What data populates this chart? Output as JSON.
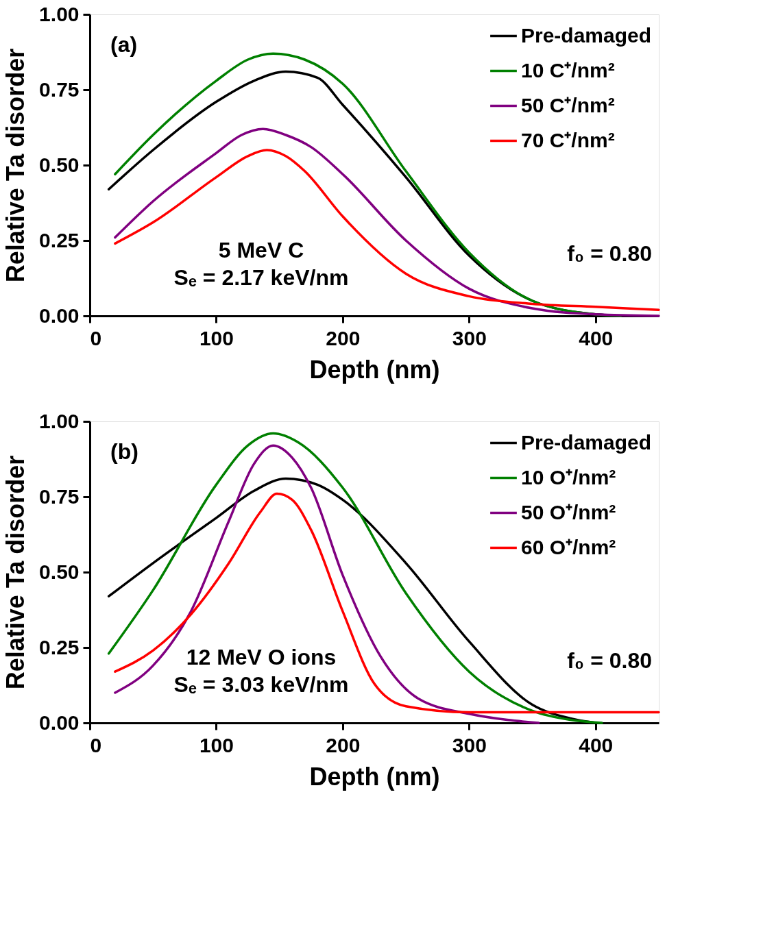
{
  "chart_data": [
    {
      "type": "line",
      "xlabel": "Depth (nm)",
      "ylabel": "Relative Ta disorder",
      "xlim": [
        0,
        450
      ],
      "xticks": [
        0,
        100,
        200,
        300,
        400
      ],
      "ylim": [
        0,
        1
      ],
      "yticks": [
        {
          "value": 0,
          "label": "0.00"
        },
        {
          "value": 0.25,
          "label": "0.25"
        },
        {
          "value": 0.5,
          "label": "0.50"
        },
        {
          "value": 0.75,
          "label": "0.75"
        },
        {
          "value": 1,
          "label": "1.00"
        }
      ],
      "grid": false,
      "legend": "top right",
      "line_style": "solid",
      "marker": "none",
      "annotations": [
        "(a)",
        "5 MeV C",
        "Sₑ = 2.17 keV/nm",
        "f₀ = 0.80"
      ],
      "series": [
        {
          "name": "Pre-damaged",
          "color": "#000000",
          "x": [
            15,
            50,
            100,
            130,
            155,
            180,
            200,
            250,
            300,
            350,
            400,
            420
          ],
          "values": [
            0.42,
            0.55,
            0.71,
            0.78,
            0.81,
            0.79,
            0.7,
            0.46,
            0.2,
            0.05,
            0.005,
            0.0
          ]
        },
        {
          "name": "10 C⁺/nm²",
          "color": "#008000",
          "x": [
            20,
            50,
            100,
            125,
            145,
            170,
            200,
            250,
            300,
            350,
            400,
            420
          ],
          "values": [
            0.47,
            0.6,
            0.78,
            0.85,
            0.87,
            0.85,
            0.77,
            0.48,
            0.21,
            0.05,
            0.005,
            0.0
          ]
        },
        {
          "name": "50 C⁺/nm²",
          "color": "#800080",
          "x": [
            20,
            50,
            100,
            120,
            137,
            155,
            175,
            200,
            250,
            300,
            350,
            400,
            450
          ],
          "values": [
            0.26,
            0.38,
            0.54,
            0.6,
            0.62,
            0.6,
            0.56,
            0.47,
            0.25,
            0.09,
            0.025,
            0.005,
            0.0
          ]
        },
        {
          "name": "70 C⁺/nm²",
          "color": "#ff0000",
          "x": [
            20,
            50,
            100,
            125,
            140,
            155,
            170,
            200,
            250,
            300,
            350,
            400,
            450
          ],
          "values": [
            0.24,
            0.31,
            0.46,
            0.53,
            0.55,
            0.53,
            0.48,
            0.33,
            0.14,
            0.065,
            0.04,
            0.03,
            0.02
          ]
        }
      ]
    },
    {
      "type": "line",
      "xlabel": "Depth (nm)",
      "ylabel": "Relative Ta disorder",
      "xlim": [
        0,
        450
      ],
      "xticks": [
        0,
        100,
        200,
        300,
        400
      ],
      "ylim": [
        0,
        1
      ],
      "yticks": [
        {
          "value": 0,
          "label": "0.00"
        },
        {
          "value": 0.25,
          "label": "0.25"
        },
        {
          "value": 0.5,
          "label": "0.50"
        },
        {
          "value": 0.75,
          "label": "0.75"
        },
        {
          "value": 1,
          "label": "1.00"
        }
      ],
      "grid": false,
      "legend": "top right",
      "line_style": "solid",
      "marker": "none",
      "annotations": [
        "(b)",
        "12 MeV O ions",
        "Sₑ = 3.03 keV/nm",
        "f₀ = 0.80"
      ],
      "series": [
        {
          "name": "Pre-damaged",
          "color": "#000000",
          "x": [
            15,
            50,
            100,
            130,
            155,
            180,
            200,
            250,
            300,
            350,
            380,
            400
          ],
          "values": [
            0.42,
            0.53,
            0.68,
            0.77,
            0.81,
            0.79,
            0.74,
            0.53,
            0.27,
            0.06,
            0.015,
            0.0
          ]
        },
        {
          "name": "10 O⁺/nm²",
          "color": "#008000",
          "x": [
            15,
            50,
            100,
            125,
            145,
            165,
            200,
            250,
            300,
            350,
            380,
            405
          ],
          "values": [
            0.23,
            0.44,
            0.79,
            0.92,
            0.96,
            0.93,
            0.78,
            0.43,
            0.17,
            0.04,
            0.01,
            0.0
          ]
        },
        {
          "name": "50 O⁺/nm²",
          "color": "#800080",
          "x": [
            20,
            50,
            80,
            110,
            130,
            145,
            160,
            175,
            200,
            230,
            260,
            300,
            330,
            355
          ],
          "values": [
            0.1,
            0.19,
            0.37,
            0.67,
            0.86,
            0.92,
            0.88,
            0.78,
            0.49,
            0.22,
            0.08,
            0.03,
            0.01,
            0.0
          ]
        },
        {
          "name": "60 O⁺/nm²",
          "color": "#ff0000",
          "x": [
            20,
            50,
            80,
            110,
            135,
            148,
            160,
            175,
            200,
            225,
            250,
            300,
            450
          ],
          "values": [
            0.17,
            0.24,
            0.36,
            0.53,
            0.7,
            0.76,
            0.74,
            0.64,
            0.37,
            0.13,
            0.055,
            0.035,
            0.035
          ]
        }
      ]
    }
  ]
}
